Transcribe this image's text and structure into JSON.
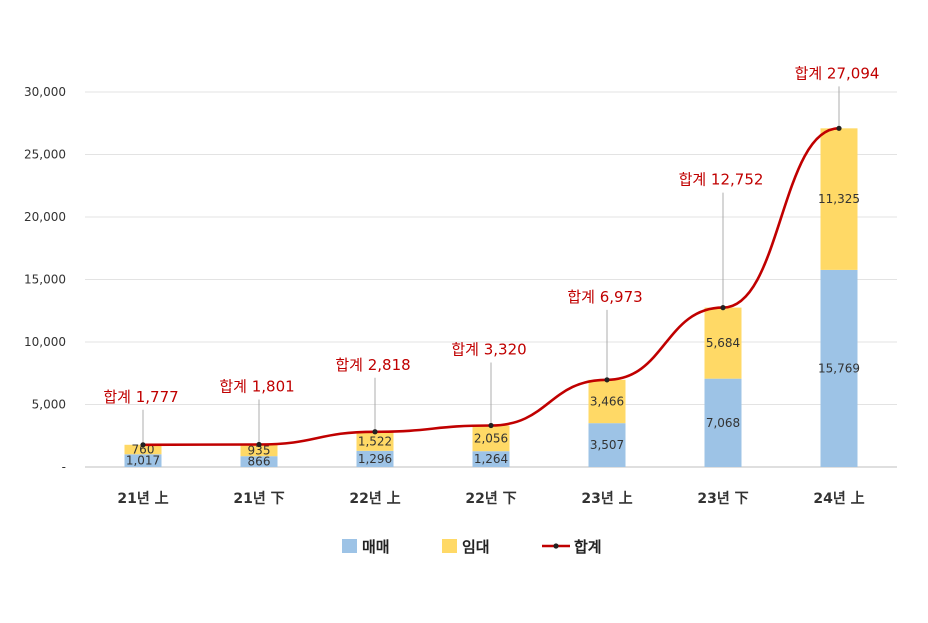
{
  "chart_data": {
    "type": "bar",
    "stacked": true,
    "categories": [
      "21년 上",
      "21년 下",
      "22년 上",
      "22년 下",
      "23년 上",
      "23년 下",
      "24년 上"
    ],
    "series": [
      {
        "name": "매매",
        "values": [
          1017,
          866,
          1296,
          1264,
          3507,
          7068,
          15769
        ],
        "color": "#9dc3e6"
      },
      {
        "name": "임대",
        "values": [
          760,
          935,
          1522,
          2056,
          3466,
          5684,
          11325
        ],
        "color": "#ffd966"
      }
    ],
    "value_labels": {
      "매매": [
        "1,017",
        "866",
        "1,296",
        "1,264",
        "3,507",
        "7,068",
        "15,769"
      ],
      "임대": [
        "760",
        "935",
        "1,522",
        "2,056",
        "3,466",
        "5,684",
        "11,325"
      ]
    },
    "total": {
      "name": "합계",
      "type": "line",
      "color": "#c00000",
      "values": [
        1777,
        1801,
        2818,
        3320,
        6973,
        12752,
        27094
      ],
      "labels": [
        "합계 1,777",
        "합계 1,801",
        "합계 2,818",
        "합계 3,320",
        "합계 6,973",
        "합계 12,752",
        "합계 27,094"
      ]
    },
    "yticks": [
      0,
      5000,
      10000,
      15000,
      20000,
      25000,
      30000
    ],
    "ytick_labels": [
      "-",
      "5,000",
      "10,000",
      "15,000",
      "20,000",
      "25,000",
      "30,000"
    ],
    "ylim": [
      0,
      30000
    ],
    "grid": true,
    "legend_position": "bottom",
    "title": "",
    "xlabel": "",
    "ylabel": ""
  }
}
